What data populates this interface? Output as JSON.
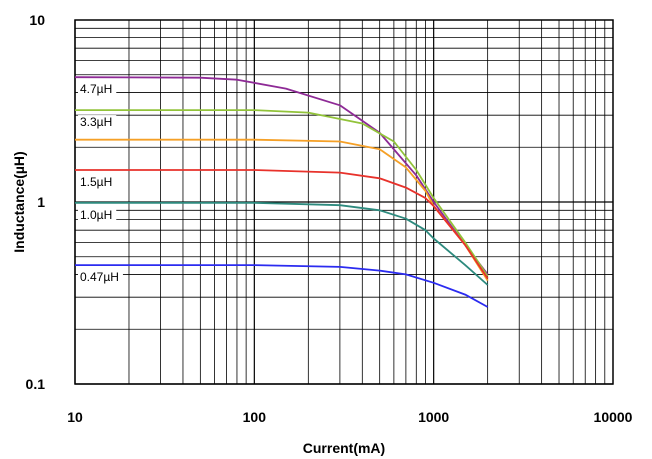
{
  "chart_data": {
    "type": "line",
    "xscale": "log",
    "yscale": "log",
    "xlim": [
      10,
      10000
    ],
    "ylim": [
      0.1,
      10
    ],
    "xlabel": "Current(mA)",
    "ylabel": "Inductance(µH)",
    "x_ticks": [
      {
        "value": 10,
        "label": "10"
      },
      {
        "value": 100,
        "label": "100"
      },
      {
        "value": 1000,
        "label": "1000"
      },
      {
        "value": 10000,
        "label": "10000"
      }
    ],
    "y_ticks": [
      {
        "value": 0.1,
        "label": "0.1"
      },
      {
        "value": 1,
        "label": "1"
      },
      {
        "value": 10,
        "label": "10"
      }
    ],
    "grid": true,
    "series": [
      {
        "name": "4.7µH",
        "color": "#8e2a96",
        "x": [
          10,
          50,
          80,
          150,
          300,
          500,
          800,
          1000,
          1500,
          2000
        ],
        "y": [
          4.85,
          4.82,
          4.7,
          4.2,
          3.4,
          2.4,
          1.4,
          1.0,
          0.58,
          0.4
        ]
      },
      {
        "name": "3.3µH",
        "color": "#92c33a",
        "x": [
          10,
          100,
          200,
          400,
          600,
          800,
          1000,
          1500,
          2000
        ],
        "y": [
          3.2,
          3.2,
          3.1,
          2.7,
          2.15,
          1.5,
          1.05,
          0.6,
          0.39
        ]
      },
      {
        "name": "",
        "color": "#f5a027",
        "x": [
          10,
          100,
          300,
          500,
          700,
          900,
          1000,
          1500,
          2000
        ],
        "y": [
          2.2,
          2.2,
          2.15,
          1.95,
          1.55,
          1.15,
          0.95,
          0.58,
          0.37
        ]
      },
      {
        "name": "1.5µH",
        "color": "#e8322b",
        "x": [
          10,
          100,
          300,
          500,
          700,
          900,
          1000,
          1500,
          2000
        ],
        "y": [
          1.5,
          1.5,
          1.45,
          1.35,
          1.2,
          1.05,
          0.95,
          0.58,
          0.38
        ]
      },
      {
        "name": "1.0µH",
        "color": "#2d8a7e",
        "x": [
          10,
          100,
          300,
          500,
          700,
          900,
          1000,
          1500,
          2000
        ],
        "y": [
          0.99,
          0.99,
          0.96,
          0.9,
          0.81,
          0.7,
          0.63,
          0.45,
          0.35
        ]
      },
      {
        "name": "0.47µH",
        "color": "#2b2bf0",
        "x": [
          10,
          100,
          300,
          500,
          700,
          1000,
          1500,
          2000
        ],
        "y": [
          0.45,
          0.45,
          0.44,
          0.42,
          0.4,
          0.36,
          0.31,
          0.265
        ]
      }
    ]
  }
}
